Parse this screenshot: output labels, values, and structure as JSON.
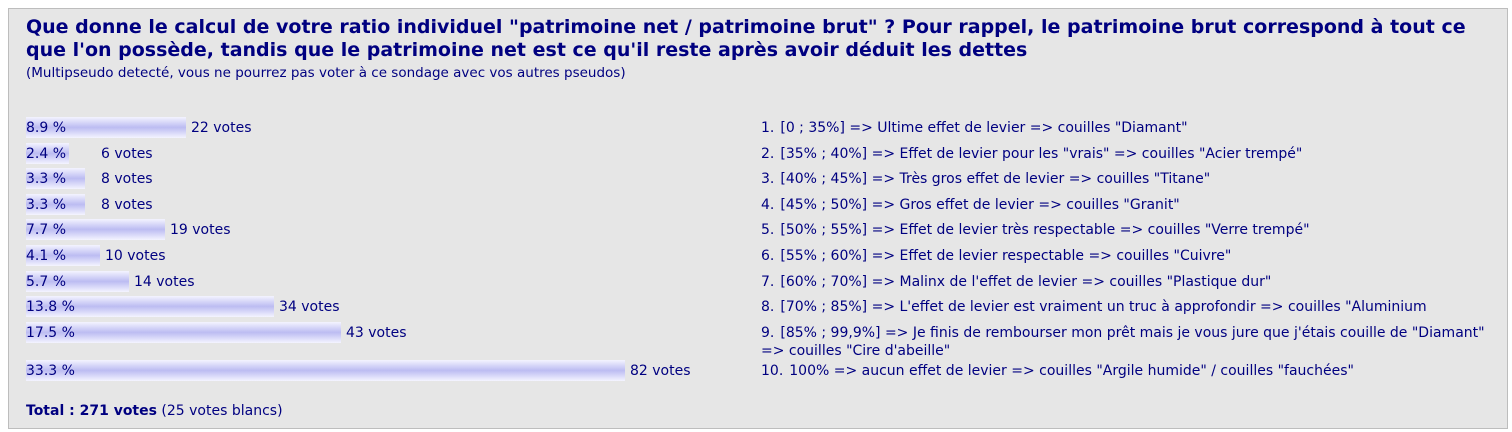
{
  "poll": {
    "question": "Que donne le calcul de votre ratio individuel \"patrimoine net / patrimoine brut\" ? Pour rappel, le patrimoine brut correspond à tout ce que l'on possède, tandis que le patrimoine net est ce qu'il reste après avoir déduit les dettes",
    "notice": "(Multipseudo detecté, vous ne pourrez pas voter à ce sondage avec vos autres pseudos)",
    "bar_color": "#bcbcf2",
    "text_color": "#000080",
    "rows": [
      {
        "percent": "8.9 %",
        "share": 0.089,
        "votes": "22 votes",
        "num": "1.",
        "answer": "[0 ; 35%] => Ultime effet de levier => couilles \"Diamant\""
      },
      {
        "percent": "2.4 %",
        "share": 0.024,
        "votes": "6 votes",
        "num": "2.",
        "answer": "[35% ; 40%] => Effet de levier pour les \"vrais\" => couilles \"Acier trempé\""
      },
      {
        "percent": "3.3 %",
        "share": 0.033,
        "votes": "8 votes",
        "num": "3.",
        "answer": "[40% ; 45%] => Très gros effet de levier => couilles \"Titane\""
      },
      {
        "percent": "3.3 %",
        "share": 0.033,
        "votes": "8 votes",
        "num": "4.",
        "answer": "[45% ; 50%] => Gros effet de levier => couilles \"Granit\""
      },
      {
        "percent": "7.7 %",
        "share": 0.077,
        "votes": "19 votes",
        "num": "5.",
        "answer": "[50% ; 55%] => Effet de levier très respectable => couilles \"Verre trempé\""
      },
      {
        "percent": "4.1 %",
        "share": 0.041,
        "votes": "10 votes",
        "num": "6.",
        "answer": "[55% ; 60%] => Effet de levier respectable => couilles \"Cuivre\""
      },
      {
        "percent": "5.7 %",
        "share": 0.057,
        "votes": "14 votes",
        "num": "7.",
        "answer": "[60% ; 70%] => Malinx de l'effet de levier => couilles \"Plastique dur\""
      },
      {
        "percent": "13.8 %",
        "share": 0.138,
        "votes": "34 votes",
        "num": "8.",
        "answer": "[70% ; 85%] => L'effet de levier est vraiment un truc à approfondir => couilles \"Aluminium"
      },
      {
        "percent": "17.5 %",
        "share": 0.175,
        "votes": "43 votes",
        "num": "9.",
        "answer": "[85% ; 99,9%] => Je finis de rembourser mon prêt mais je vous jure que j'étais couille de \"Diamant\" => couilles \"Cire d'abeille\""
      },
      {
        "percent": "33.3 %",
        "share": 0.333,
        "votes": "82 votes",
        "num": "10.",
        "answer": "100% => aucun effet de levier => couilles \"Argile humide\" / couilles \"fauchées\""
      }
    ],
    "total_label": "Total : 271 votes",
    "blank_votes": "(25 votes blancs)"
  }
}
